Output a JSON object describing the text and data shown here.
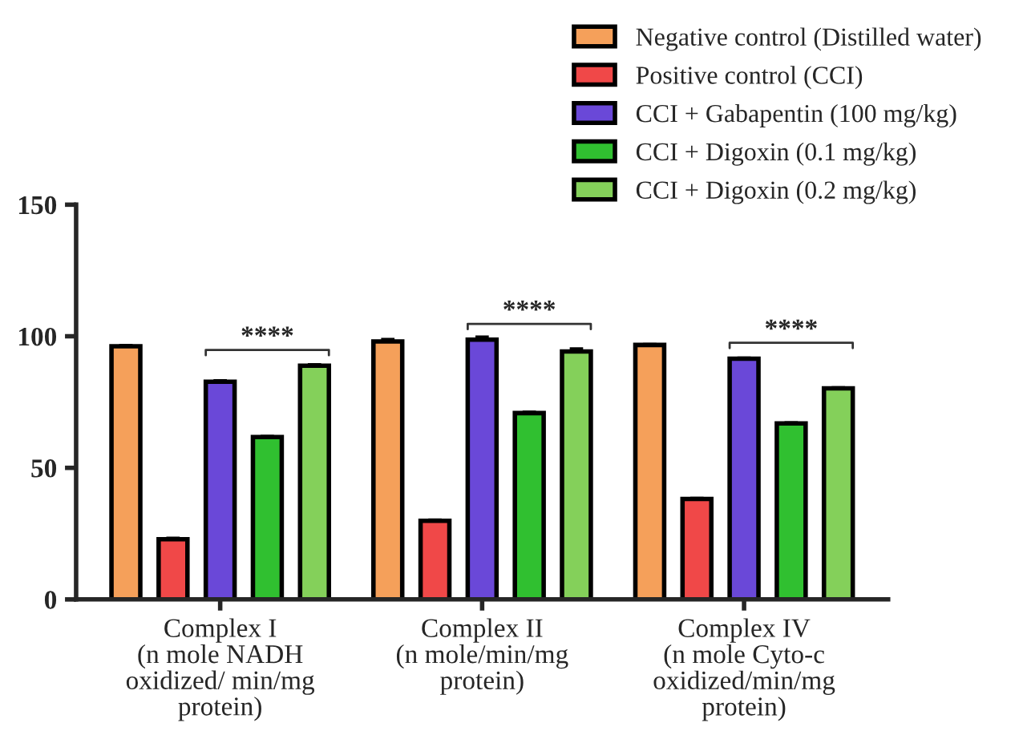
{
  "chart_data": {
    "type": "bar",
    "categories": [
      "Complex I\n(n mole NADH\noxidized/ min/mg\nprotein)",
      "Complex II\n(n mole/min/mg\nprotein)",
      "Complex IV\n(n mole Cyto-c\noxidized/min/mg\nprotein)"
    ],
    "series": [
      {
        "name": "Negative control (Distilled water)",
        "color": "#f5a05a",
        "values": [
          96.2,
          98.0,
          96.7
        ],
        "errors": [
          0.5,
          1.0,
          0.4
        ]
      },
      {
        "name": "Positive control (CCI)",
        "color": "#f04848",
        "values": [
          22.9,
          29.9,
          38.2
        ],
        "errors": [
          0.5,
          0.5,
          0.4
        ]
      },
      {
        "name": "CCI + Gabapentin (100 mg/kg)",
        "color": "#6a48d8",
        "values": [
          82.7,
          98.7,
          91.5
        ],
        "errors": [
          0.6,
          1.2,
          0.4
        ]
      },
      {
        "name": "CCI + Digoxin (0.1 mg/kg)",
        "color": "#30c030",
        "values": [
          61.7,
          70.8,
          66.9
        ],
        "errors": [
          0.4,
          0.5,
          0.4
        ]
      },
      {
        "name": "CCI + Digoxin (0.2 mg/kg)",
        "color": "#84d05a",
        "values": [
          88.8,
          94.2,
          80.2
        ],
        "errors": [
          0.6,
          1.2,
          0.4
        ]
      }
    ],
    "ylim": [
      0,
      150
    ],
    "yticks": [
      0,
      50,
      100,
      150
    ],
    "grid": false,
    "legend": "top right",
    "annotations": [
      "****",
      "****",
      "****"
    ]
  }
}
